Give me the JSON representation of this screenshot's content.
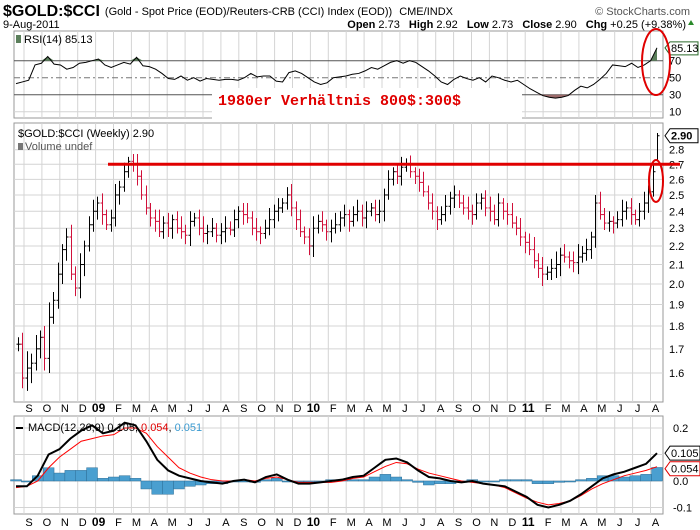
{
  "header": {
    "symbol": "$GOLD:$CCI",
    "description": "(Gold - Spot Price (EOD)/Reuters-CRB (CCI) Index (EOD))",
    "exchange": "CME/INDX",
    "brand": "© StockCharts.com",
    "date": "9-Aug-2011",
    "open_label": "Open",
    "open": "2.73",
    "high_label": "High",
    "high": "2.92",
    "low_label": "Low",
    "low": "2.73",
    "close_label": "Close",
    "close": "2.90",
    "chg_label": "Chg",
    "chg": "+0.25 (+9.38%)"
  },
  "annotation": {
    "text": "1980er Verhältnis 800$:300$",
    "line_level": 2.7,
    "color": "#e00000"
  },
  "colors": {
    "up": "#000000",
    "down": "#d0103a",
    "macd": "#000000",
    "signal": "#ff0000",
    "hist": "#4a9fd0",
    "rsi_fill": "#5b7f5b",
    "rsi_low_fill": "#9c6b6b"
  },
  "chart_data": [
    {
      "type": "line",
      "title": "RSI(14) 85.13",
      "last_label": "85.13",
      "yticks": [
        10,
        30,
        50,
        70
      ],
      "ylim": [
        0,
        90
      ],
      "values": [
        43,
        45,
        47,
        65,
        67,
        75,
        66,
        65,
        60,
        62,
        67,
        68,
        70,
        72,
        65,
        62,
        65,
        68,
        66,
        74,
        64,
        63,
        60,
        55,
        49,
        48,
        52,
        47,
        50,
        46,
        49,
        48,
        47,
        48,
        48,
        47,
        50,
        55,
        51,
        52,
        52,
        46,
        45,
        56,
        58,
        55,
        50,
        45,
        42,
        44,
        50,
        51,
        52,
        54,
        55,
        58,
        62,
        60,
        64,
        68,
        70,
        67,
        70,
        68,
        63,
        58,
        52,
        45,
        42,
        48,
        52,
        49,
        47,
        50,
        45,
        52,
        50,
        47,
        45,
        47,
        42,
        37,
        33,
        29,
        27,
        26,
        27,
        29,
        35,
        40,
        38,
        42,
        48,
        55,
        65,
        64,
        63,
        67,
        62,
        65,
        70,
        85.13
      ]
    },
    {
      "type": "bar",
      "title": "$GOLD:$CCI (Weekly) 2.90",
      "volume_label": "Volume undef",
      "last_label": "2.90",
      "scale": "log",
      "yticks": [
        1.6,
        1.7,
        1.8,
        1.9,
        2.0,
        2.1,
        2.2,
        2.3,
        2.4,
        2.5,
        2.6,
        2.7,
        2.8
      ],
      "ylim": [
        1.5,
        2.95
      ],
      "closes": [
        1.72,
        1.58,
        1.62,
        1.64,
        1.7,
        1.75,
        1.66,
        1.84,
        1.92,
        2.05,
        2.18,
        2.25,
        2.05,
        1.98,
        2.1,
        2.2,
        2.32,
        2.4,
        2.45,
        2.38,
        2.32,
        2.36,
        2.5,
        2.55,
        2.65,
        2.72,
        2.7,
        2.62,
        2.5,
        2.42,
        2.36,
        2.34,
        2.28,
        2.33,
        2.3,
        2.35,
        2.3,
        2.28,
        2.26,
        2.34,
        2.36,
        2.3,
        2.27,
        2.28,
        2.3,
        2.26,
        2.28,
        2.3,
        2.29,
        2.35,
        2.4,
        2.38,
        2.36,
        2.3,
        2.28,
        2.27,
        2.3,
        2.35,
        2.4,
        2.42,
        2.45,
        2.5,
        2.42,
        2.35,
        2.28,
        2.25,
        2.2,
        2.3,
        2.34,
        2.32,
        2.28,
        2.3,
        2.32,
        2.36,
        2.38,
        2.34,
        2.38,
        2.4,
        2.36,
        2.4,
        2.42,
        2.38,
        2.4,
        2.5,
        2.6,
        2.65,
        2.62,
        2.68,
        2.7,
        2.65,
        2.62,
        2.58,
        2.52,
        2.45,
        2.4,
        2.35,
        2.38,
        2.43,
        2.48,
        2.5,
        2.45,
        2.42,
        2.4,
        2.38,
        2.45,
        2.48,
        2.42,
        2.4,
        2.35,
        2.45,
        2.4,
        2.38,
        2.33,
        2.3,
        2.25,
        2.22,
        2.18,
        2.12,
        2.08,
        2.05,
        2.06,
        2.08,
        2.1,
        2.15,
        2.14,
        2.12,
        2.11,
        2.14,
        2.16,
        2.18,
        2.25,
        2.45,
        2.38,
        2.33,
        2.34,
        2.33,
        2.35,
        2.4,
        2.42,
        2.38,
        2.35,
        2.4,
        2.45,
        2.52,
        2.65,
        2.9
      ],
      "last_bar": {
        "open": 2.73,
        "high": 2.92,
        "low": 2.73,
        "close": 2.9
      }
    },
    {
      "type": "line",
      "title": "MACD(12,26,9)",
      "macd_value": "0.105",
      "signal_value": "0.054",
      "hist_value": "0.051",
      "sep1": ",",
      "sep2": ",",
      "yticks": [
        0.2,
        0.0,
        -0.1
      ],
      "ytick_labels": [
        "0.2",
        "0.0",
        "-0.1"
      ],
      "ylim": [
        -0.12,
        0.24
      ],
      "macd": [
        -0.02,
        -0.02,
        0.02,
        0.1,
        0.12,
        0.16,
        0.19,
        0.21,
        0.18,
        0.19,
        0.22,
        0.21,
        0.15,
        0.08,
        0.04,
        0.02,
        0.01,
        0.0,
        -0.005,
        -0.01,
        0.0,
        0.005,
        -0.005,
        0.015,
        0.025,
        0.005,
        -0.01,
        -0.01,
        -0.005,
        0.0,
        0.005,
        0.015,
        0.02,
        0.05,
        0.08,
        0.085,
        0.07,
        0.04,
        0.015,
        0.01,
        0.0,
        -0.005,
        0.0,
        -0.01,
        -0.015,
        -0.02,
        -0.04,
        -0.06,
        -0.09,
        -0.1,
        -0.09,
        -0.075,
        -0.05,
        -0.02,
        0.01,
        0.025,
        0.035,
        0.05,
        0.065,
        0.105
      ],
      "signal": [
        -0.025,
        -0.02,
        0.0,
        0.05,
        0.09,
        0.12,
        0.15,
        0.16,
        0.17,
        0.175,
        0.2,
        0.2,
        0.18,
        0.13,
        0.09,
        0.05,
        0.03,
        0.015,
        0.005,
        0.0,
        0.0,
        0.005,
        0.0,
        0.01,
        0.015,
        0.005,
        -0.005,
        -0.005,
        -0.005,
        -0.005,
        0.0,
        0.01,
        0.015,
        0.035,
        0.055,
        0.07,
        0.065,
        0.045,
        0.03,
        0.02,
        0.01,
        0.0,
        -0.005,
        -0.01,
        -0.015,
        -0.025,
        -0.045,
        -0.065,
        -0.08,
        -0.09,
        -0.085,
        -0.075,
        -0.055,
        -0.03,
        -0.01,
        0.005,
        0.02,
        0.03,
        0.04,
        0.054
      ]
    }
  ],
  "x_axis": {
    "labels": [
      "S",
      "O",
      "N",
      "D",
      "09",
      "F",
      "M",
      "A",
      "M",
      "J",
      "J",
      "A",
      "S",
      "O",
      "N",
      "D",
      "10",
      "F",
      "M",
      "A",
      "M",
      "J",
      "J",
      "A",
      "S",
      "O",
      "N",
      "D",
      "11",
      "F",
      "M",
      "A",
      "M",
      "J",
      "J",
      "A"
    ],
    "year_labels": [
      "09",
      "10",
      "11"
    ]
  }
}
